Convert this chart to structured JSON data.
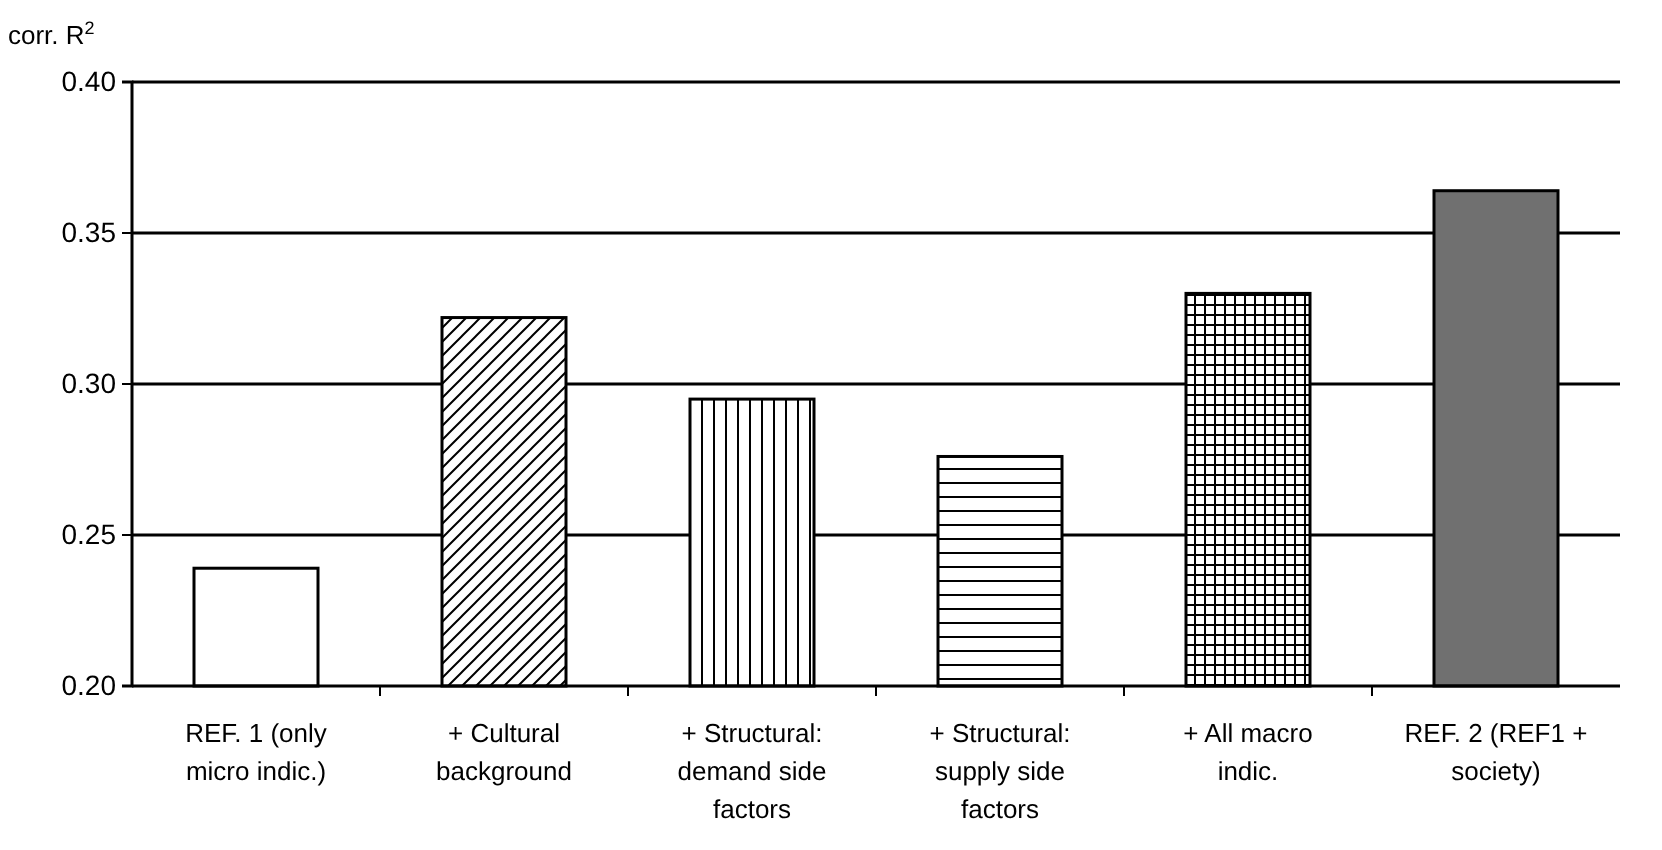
{
  "chart_data": {
    "type": "bar",
    "ylabel": "corr. R$^{2}$",
    "categories": [
      "REF. 1 (only micro indic.)",
      "+ Cultural background",
      "+ Structural: demand side factors",
      "+ Structural: supply side factors",
      "+ All macro indic.",
      "REF. 2 (REF1 + society)"
    ],
    "values": [
      0.239,
      0.322,
      0.295,
      0.276,
      0.33,
      0.364
    ],
    "colors": [
      "#ffffff",
      "#000000",
      "#000000",
      "#000000",
      "#000000",
      "#707070"
    ],
    "ylim": [
      0.2,
      0.4
    ],
    "yticks": [
      {
        "value": 0.2,
        "label": "0.20"
      },
      {
        "value": 0.25,
        "label": "0.25"
      },
      {
        "value": 0.3,
        "label": "0.30"
      },
      {
        "value": 0.35,
        "label": "0.35"
      },
      {
        "value": 0.4,
        "label": "0.40"
      }
    ],
    "grid": "y"
  }
}
